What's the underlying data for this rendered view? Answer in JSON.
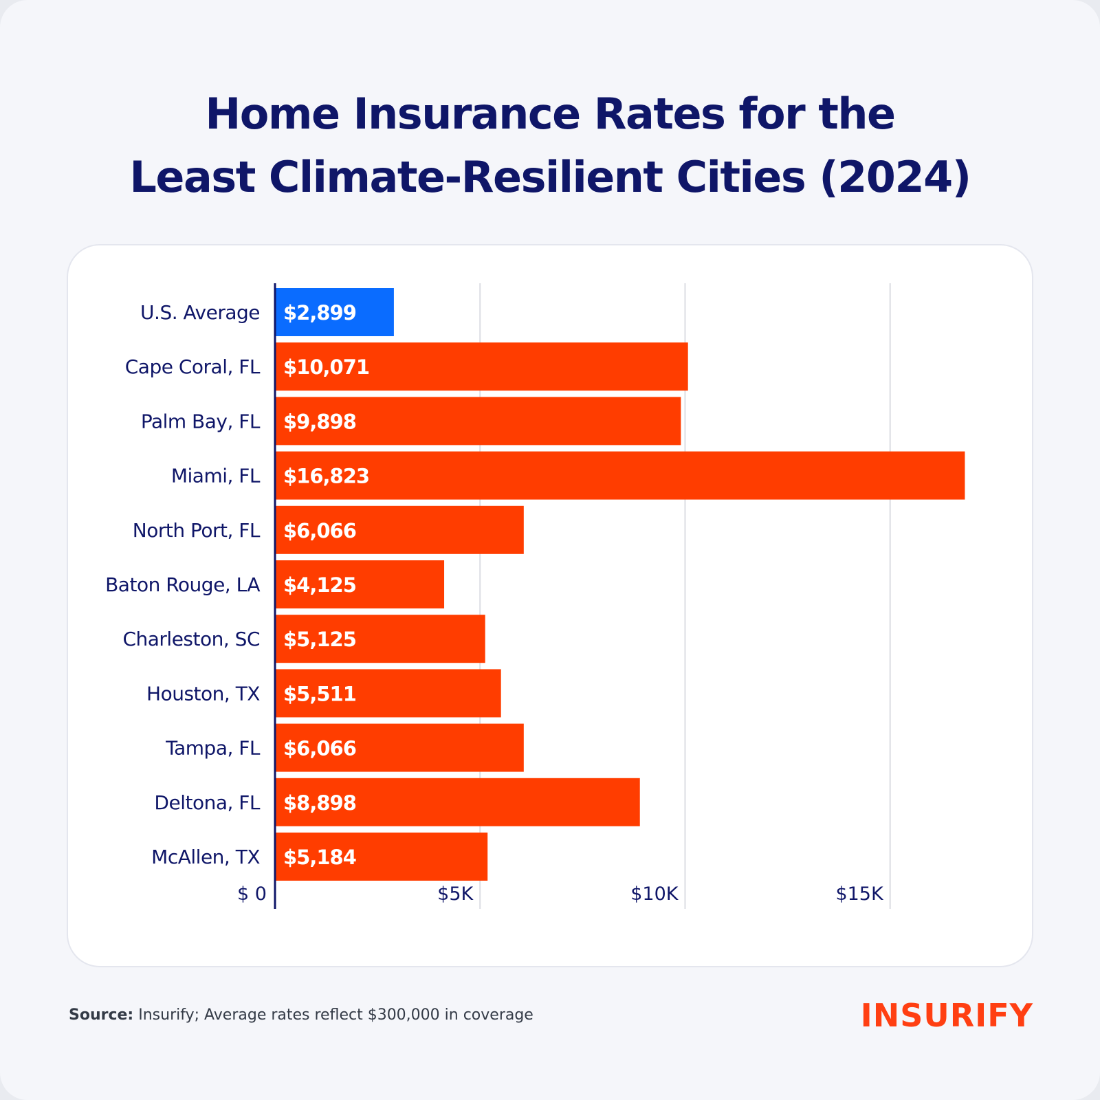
{
  "title": {
    "line1": "Home Insurance Rates for the",
    "line2": "Least Climate-Resilient Cities (2024)"
  },
  "chart_data": {
    "type": "bar",
    "orientation": "horizontal",
    "title": "Home Insurance Rates for the Least Climate-Resilient Cities (2024)",
    "categories": [
      "U.S. Average",
      "Cape Coral, FL",
      "Palm Bay, FL",
      "Miami, FL",
      "North Port, FL",
      "Baton Rouge, LA",
      "Charleston, SC",
      "Houston, TX",
      "Tampa, FL",
      "Deltona, FL",
      "McAllen, TX"
    ],
    "values": [
      2899,
      10071,
      9898,
      16823,
      6066,
      4125,
      5125,
      5511,
      6066,
      8898,
      5184
    ],
    "labels": [
      "$2,899",
      "$10,071",
      "$9,898",
      "$16,823",
      "$6,066",
      "$4,125",
      "$5,125",
      "$5,511",
      "$6,066",
      "$8,898",
      "$5,184"
    ],
    "highlight_index": 0,
    "xlim": [
      0,
      17000
    ],
    "ticks": [
      0,
      5000,
      10000,
      15000
    ],
    "tick_labels": [
      "$ 0",
      "$5K",
      "$10K",
      "$15K"
    ],
    "grid": true,
    "colors": {
      "highlight": "#0a6cff",
      "bar": "#ff3d00",
      "axis": "#0f1668",
      "grid": "#dcdde3",
      "label": "#0f1668"
    }
  },
  "footer": {
    "source_label": "Source:",
    "source_text": "Insurify; Average rates reflect $300,000 in coverage",
    "logo": "INSURIFY"
  }
}
